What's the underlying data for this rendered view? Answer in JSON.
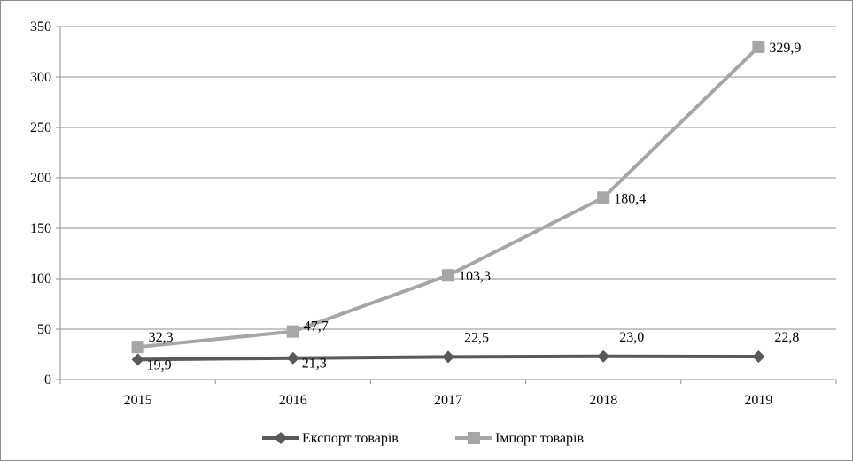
{
  "chart_data": {
    "type": "line",
    "title": "",
    "xlabel": "",
    "ylabel": "",
    "categories": [
      "2015",
      "2016",
      "2017",
      "2018",
      "2019"
    ],
    "ylim": [
      0,
      350
    ],
    "y_ticks": [
      0,
      50,
      100,
      150,
      200,
      250,
      300,
      350
    ],
    "grid": "horizontal",
    "legend_position": "bottom",
    "series": [
      {
        "name": "Експорт товарів",
        "values": [
          19.9,
          21.3,
          22.5,
          23.0,
          22.8
        ],
        "labels": [
          "19,9",
          "21,3",
          "22,5",
          "23,0",
          "22,8"
        ],
        "color": "#595959",
        "marker": "diamond"
      },
      {
        "name": "Імпорт товарів",
        "values": [
          32.3,
          47.7,
          103.3,
          180.4,
          329.9
        ],
        "labels": [
          "32,3",
          "47,7",
          "103,3",
          "180,4",
          "329,9"
        ],
        "color": "#a6a6a6",
        "marker": "square"
      }
    ]
  }
}
